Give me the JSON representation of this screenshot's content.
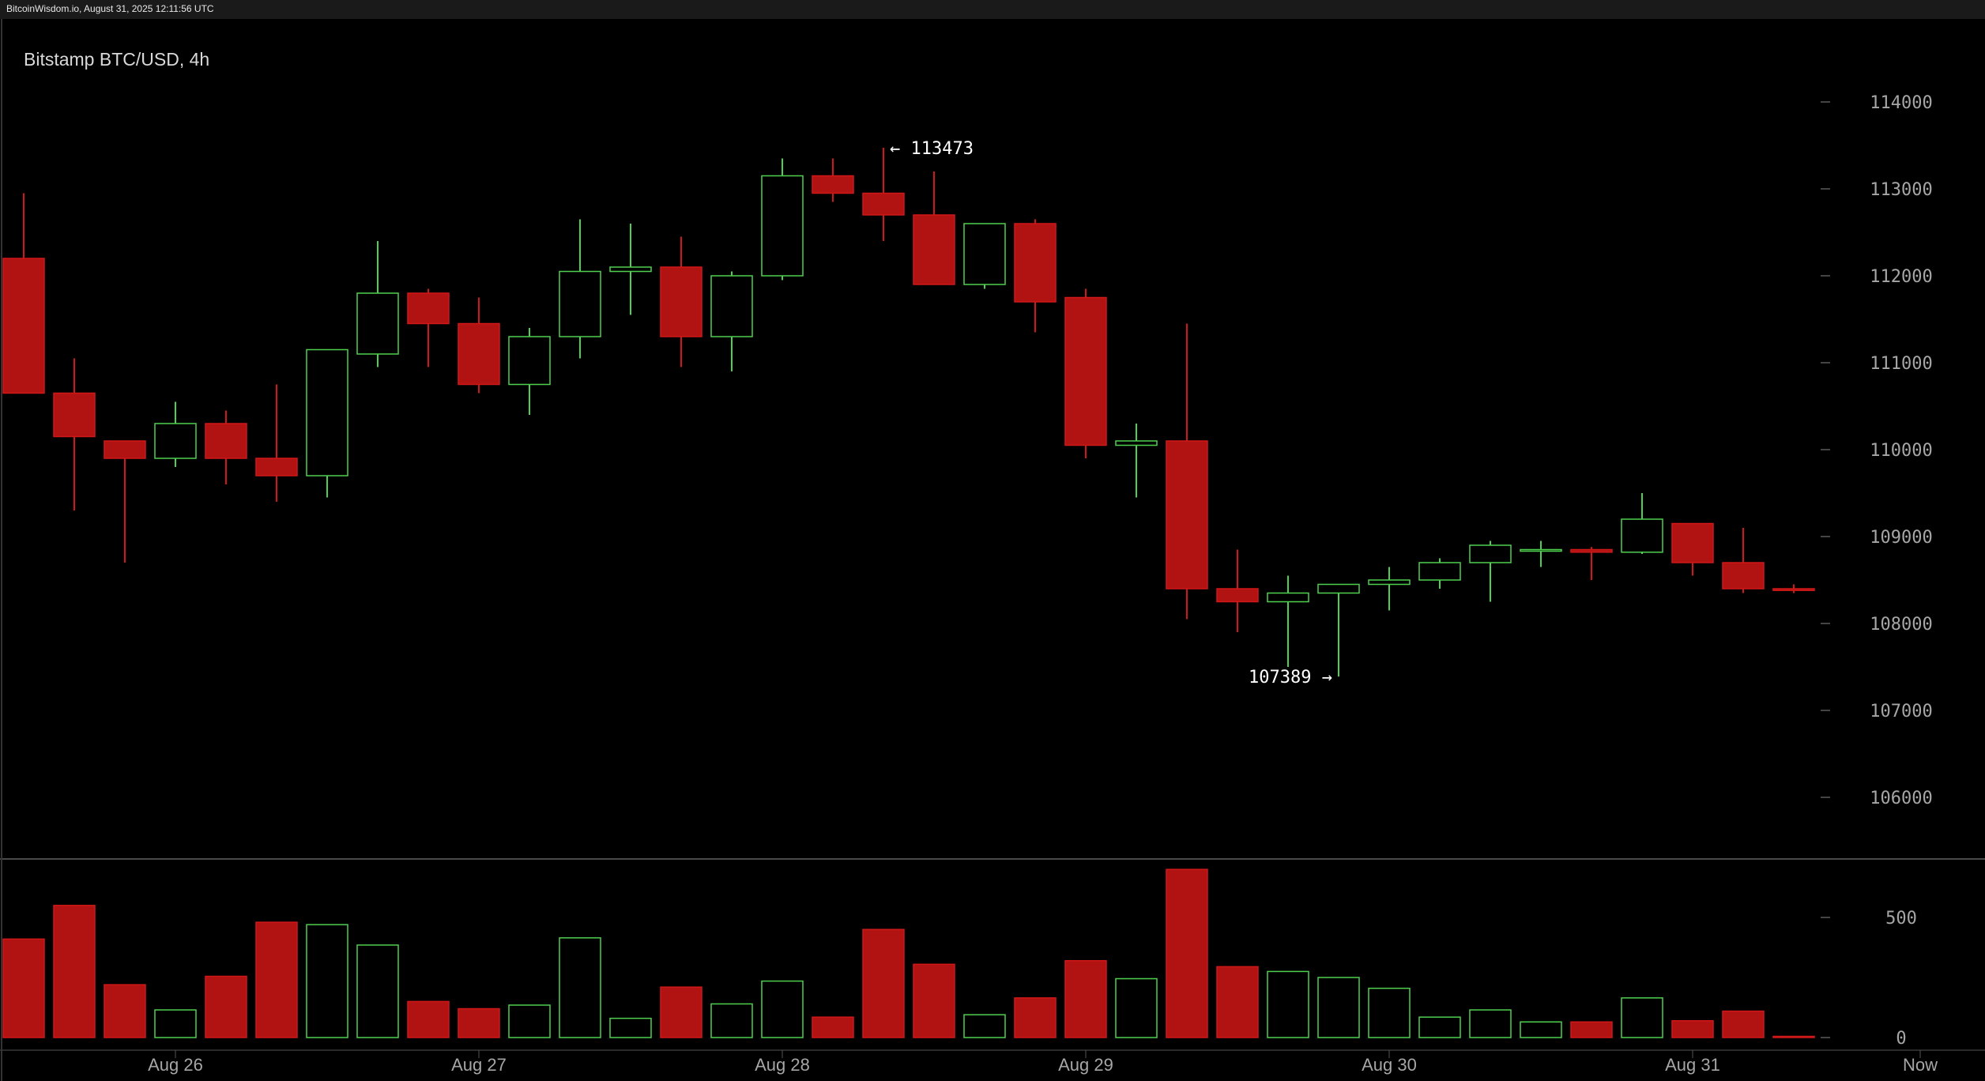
{
  "watermark": "BitcoinWisdom.io, August 31, 2025 12:11:56 UTC",
  "colors": {
    "up": "#4fcf4f",
    "down": "#b11212",
    "down_stroke": "#d01818",
    "grid": "#5a5a5a",
    "text": "#a6a6a6"
  },
  "chart_data": {
    "type": "candlestick",
    "title": "Bitstamp BTC/USD, 4h",
    "price_ticks": [
      "114000",
      "113000",
      "112000",
      "111000",
      "110000",
      "109000",
      "108000",
      "107000",
      "106000"
    ],
    "price_range": [
      105500,
      114500
    ],
    "volume_ticks": [
      "500",
      "0"
    ],
    "volume_range": [
      0,
      700
    ],
    "x_labels": [
      {
        "label": "Aug 26",
        "index": 3
      },
      {
        "label": "Aug 27",
        "index": 9
      },
      {
        "label": "Aug 28",
        "index": 15
      },
      {
        "label": "Aug 29",
        "index": 21
      },
      {
        "label": "Aug 30",
        "index": 27
      },
      {
        "label": "Aug 31",
        "index": 33
      },
      {
        "label": "Now",
        "index": 37.5
      }
    ],
    "annotations": [
      {
        "text": "← 113473",
        "index": 17,
        "value": 113473,
        "side": "right"
      },
      {
        "text": "107389 →",
        "index": 26,
        "value": 107389,
        "side": "left"
      }
    ],
    "candles": [
      {
        "o": 112200,
        "h": 112950,
        "l": 110650,
        "c": 110650,
        "v": 410
      },
      {
        "o": 110650,
        "h": 111050,
        "l": 109300,
        "c": 110150,
        "v": 550
      },
      {
        "o": 110100,
        "h": 110100,
        "l": 108700,
        "c": 109900,
        "v": 220
      },
      {
        "o": 109900,
        "h": 110550,
        "l": 109800,
        "c": 110300,
        "v": 115
      },
      {
        "o": 110300,
        "h": 110450,
        "l": 109600,
        "c": 109900,
        "v": 255
      },
      {
        "o": 109900,
        "h": 110750,
        "l": 109400,
        "c": 109700,
        "v": 480
      },
      {
        "o": 109700,
        "h": 111150,
        "l": 109450,
        "c": 111150,
        "v": 470
      },
      {
        "o": 111100,
        "h": 112400,
        "l": 110950,
        "c": 111800,
        "v": 385
      },
      {
        "o": 111800,
        "h": 111850,
        "l": 110950,
        "c": 111450,
        "v": 150
      },
      {
        "o": 111450,
        "h": 111750,
        "l": 110650,
        "c": 110750,
        "v": 120
      },
      {
        "o": 110750,
        "h": 111400,
        "l": 110400,
        "c": 111300,
        "v": 135
      },
      {
        "o": 111300,
        "h": 112650,
        "l": 111050,
        "c": 112050,
        "v": 415
      },
      {
        "o": 112050,
        "h": 112600,
        "l": 111550,
        "c": 112100,
        "v": 80
      },
      {
        "o": 112100,
        "h": 112450,
        "l": 110950,
        "c": 111300,
        "v": 210
      },
      {
        "o": 111300,
        "h": 112050,
        "l": 110900,
        "c": 112000,
        "v": 140
      },
      {
        "o": 112000,
        "h": 113350,
        "l": 111950,
        "c": 113150,
        "v": 235
      },
      {
        "o": 113150,
        "h": 113350,
        "l": 112850,
        "c": 112950,
        "v": 85
      },
      {
        "o": 112950,
        "h": 113473,
        "l": 112400,
        "c": 112700,
        "v": 450
      },
      {
        "o": 112700,
        "h": 113200,
        "l": 111900,
        "c": 111900,
        "v": 305
      },
      {
        "o": 111900,
        "h": 112600,
        "l": 111850,
        "c": 112600,
        "v": 95
      },
      {
        "o": 112600,
        "h": 112650,
        "l": 111350,
        "c": 111700,
        "v": 165
      },
      {
        "o": 111750,
        "h": 111850,
        "l": 109900,
        "c": 110050,
        "v": 320
      },
      {
        "o": 110050,
        "h": 110300,
        "l": 109450,
        "c": 110100,
        "v": 245
      },
      {
        "o": 110100,
        "h": 111450,
        "l": 108050,
        "c": 108400,
        "v": 700
      },
      {
        "o": 108400,
        "h": 108850,
        "l": 107900,
        "c": 108250,
        "v": 295
      },
      {
        "o": 108250,
        "h": 108550,
        "l": 107500,
        "c": 108350,
        "v": 275
      },
      {
        "o": 108350,
        "h": 108450,
        "l": 107389,
        "c": 108450,
        "v": 250
      },
      {
        "o": 108450,
        "h": 108650,
        "l": 108150,
        "c": 108500,
        "v": 205
      },
      {
        "o": 108500,
        "h": 108750,
        "l": 108400,
        "c": 108700,
        "v": 85
      },
      {
        "o": 108700,
        "h": 108950,
        "l": 108250,
        "c": 108900,
        "v": 115
      },
      {
        "o": 108850,
        "h": 108950,
        "l": 108650,
        "c": 108850,
        "v": 65
      },
      {
        "o": 108850,
        "h": 108880,
        "l": 108500,
        "c": 108820,
        "v": 65
      },
      {
        "o": 108820,
        "h": 109500,
        "l": 108800,
        "c": 109200,
        "v": 165
      },
      {
        "o": 109150,
        "h": 109150,
        "l": 108550,
        "c": 108700,
        "v": 70
      },
      {
        "o": 108700,
        "h": 109100,
        "l": 108350,
        "c": 108400,
        "v": 110
      },
      {
        "o": 108400,
        "h": 108450,
        "l": 108350,
        "c": 108380,
        "v": 5
      }
    ]
  }
}
